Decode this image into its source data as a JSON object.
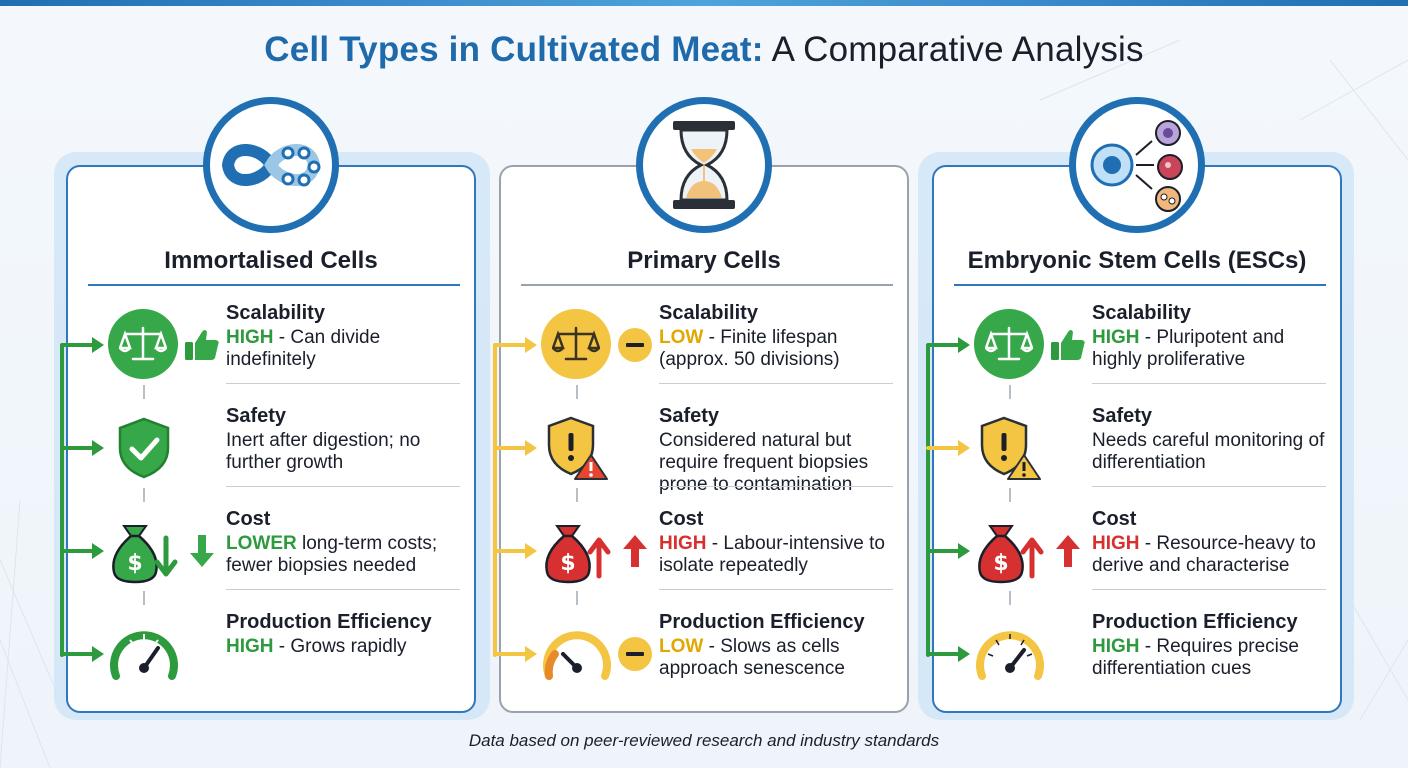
{
  "title": {
    "highlight": "Cell Types in Cultivated Meat:",
    "rest": " A Comparative Analysis"
  },
  "footer": "Data based on peer-reviewed research and industry standards",
  "colors": {
    "good": "#2e9a3e",
    "neutral": "#f4c542",
    "bad": "#d63030",
    "accent": "#1f6fb2"
  },
  "cards": [
    {
      "name": "Immortalised Cells",
      "icon": "infinity-chain-icon",
      "rows": [
        {
          "label": "Scalability",
          "level": "HIGH",
          "sep": " - ",
          "text": "Can divide indefinitely",
          "icon": "balance-scale-icon",
          "mark": "thumbs-up-icon"
        },
        {
          "label": "Safety",
          "level": "",
          "sep": "",
          "text": "Inert after digestion; no further growth",
          "icon": "shield-check-icon",
          "mark": ""
        },
        {
          "label": "Cost",
          "level": "LOWER",
          "sep": " ",
          "text": "long-term costs; fewer biopsies needed",
          "icon": "money-bag-icon",
          "mark": "arrow-down-icon"
        },
        {
          "label": "Production Efficiency",
          "level": "HIGH",
          "sep": " - ",
          "text": "Grows rapidly",
          "icon": "speedometer-icon",
          "mark": ""
        }
      ]
    },
    {
      "name": "Primary Cells",
      "icon": "hourglass-icon",
      "rows": [
        {
          "label": "Scalability",
          "level": "LOW",
          "sep": " - ",
          "text": "Finite lifespan (approx. 50 divisions)",
          "icon": "balance-scale-icon",
          "mark": "minus-icon"
        },
        {
          "label": "Safety",
          "level": "",
          "sep": "",
          "text": "Considered natural but require frequent biopsies prone to contamination",
          "icon": "shield-warning-icon",
          "mark": ""
        },
        {
          "label": "Cost",
          "level": "HIGH",
          "sep": " - ",
          "text": "Labour-intensive to isolate repeatedly",
          "icon": "money-bag-icon",
          "mark": "arrow-up-icon"
        },
        {
          "label": "Production Efficiency",
          "level": "LOW",
          "sep": " - ",
          "text": "Slows as cells approach senescence",
          "icon": "speedometer-icon",
          "mark": "minus-icon"
        }
      ]
    },
    {
      "name": "Embryonic Stem Cells (ESCs)",
      "icon": "stem-cell-differentiation-icon",
      "rows": [
        {
          "label": "Scalability",
          "level": "HIGH",
          "sep": " - ",
          "text": "Pluripotent and highly proliferative",
          "icon": "balance-scale-icon",
          "mark": "thumbs-up-icon"
        },
        {
          "label": "Safety",
          "level": "",
          "sep": "",
          "text": "Needs careful monitoring of differentiation",
          "icon": "shield-warning-icon",
          "mark": ""
        },
        {
          "label": "Cost",
          "level": "HIGH",
          "sep": " - ",
          "text": "Resource-heavy to derive and characterise",
          "icon": "money-bag-icon",
          "mark": "arrow-up-icon"
        },
        {
          "label": "Production Efficiency",
          "level": "HIGH",
          "sep": " - ",
          "text": "Requires precise differentiation cues",
          "icon": "speedometer-icon",
          "mark": ""
        }
      ]
    }
  ]
}
